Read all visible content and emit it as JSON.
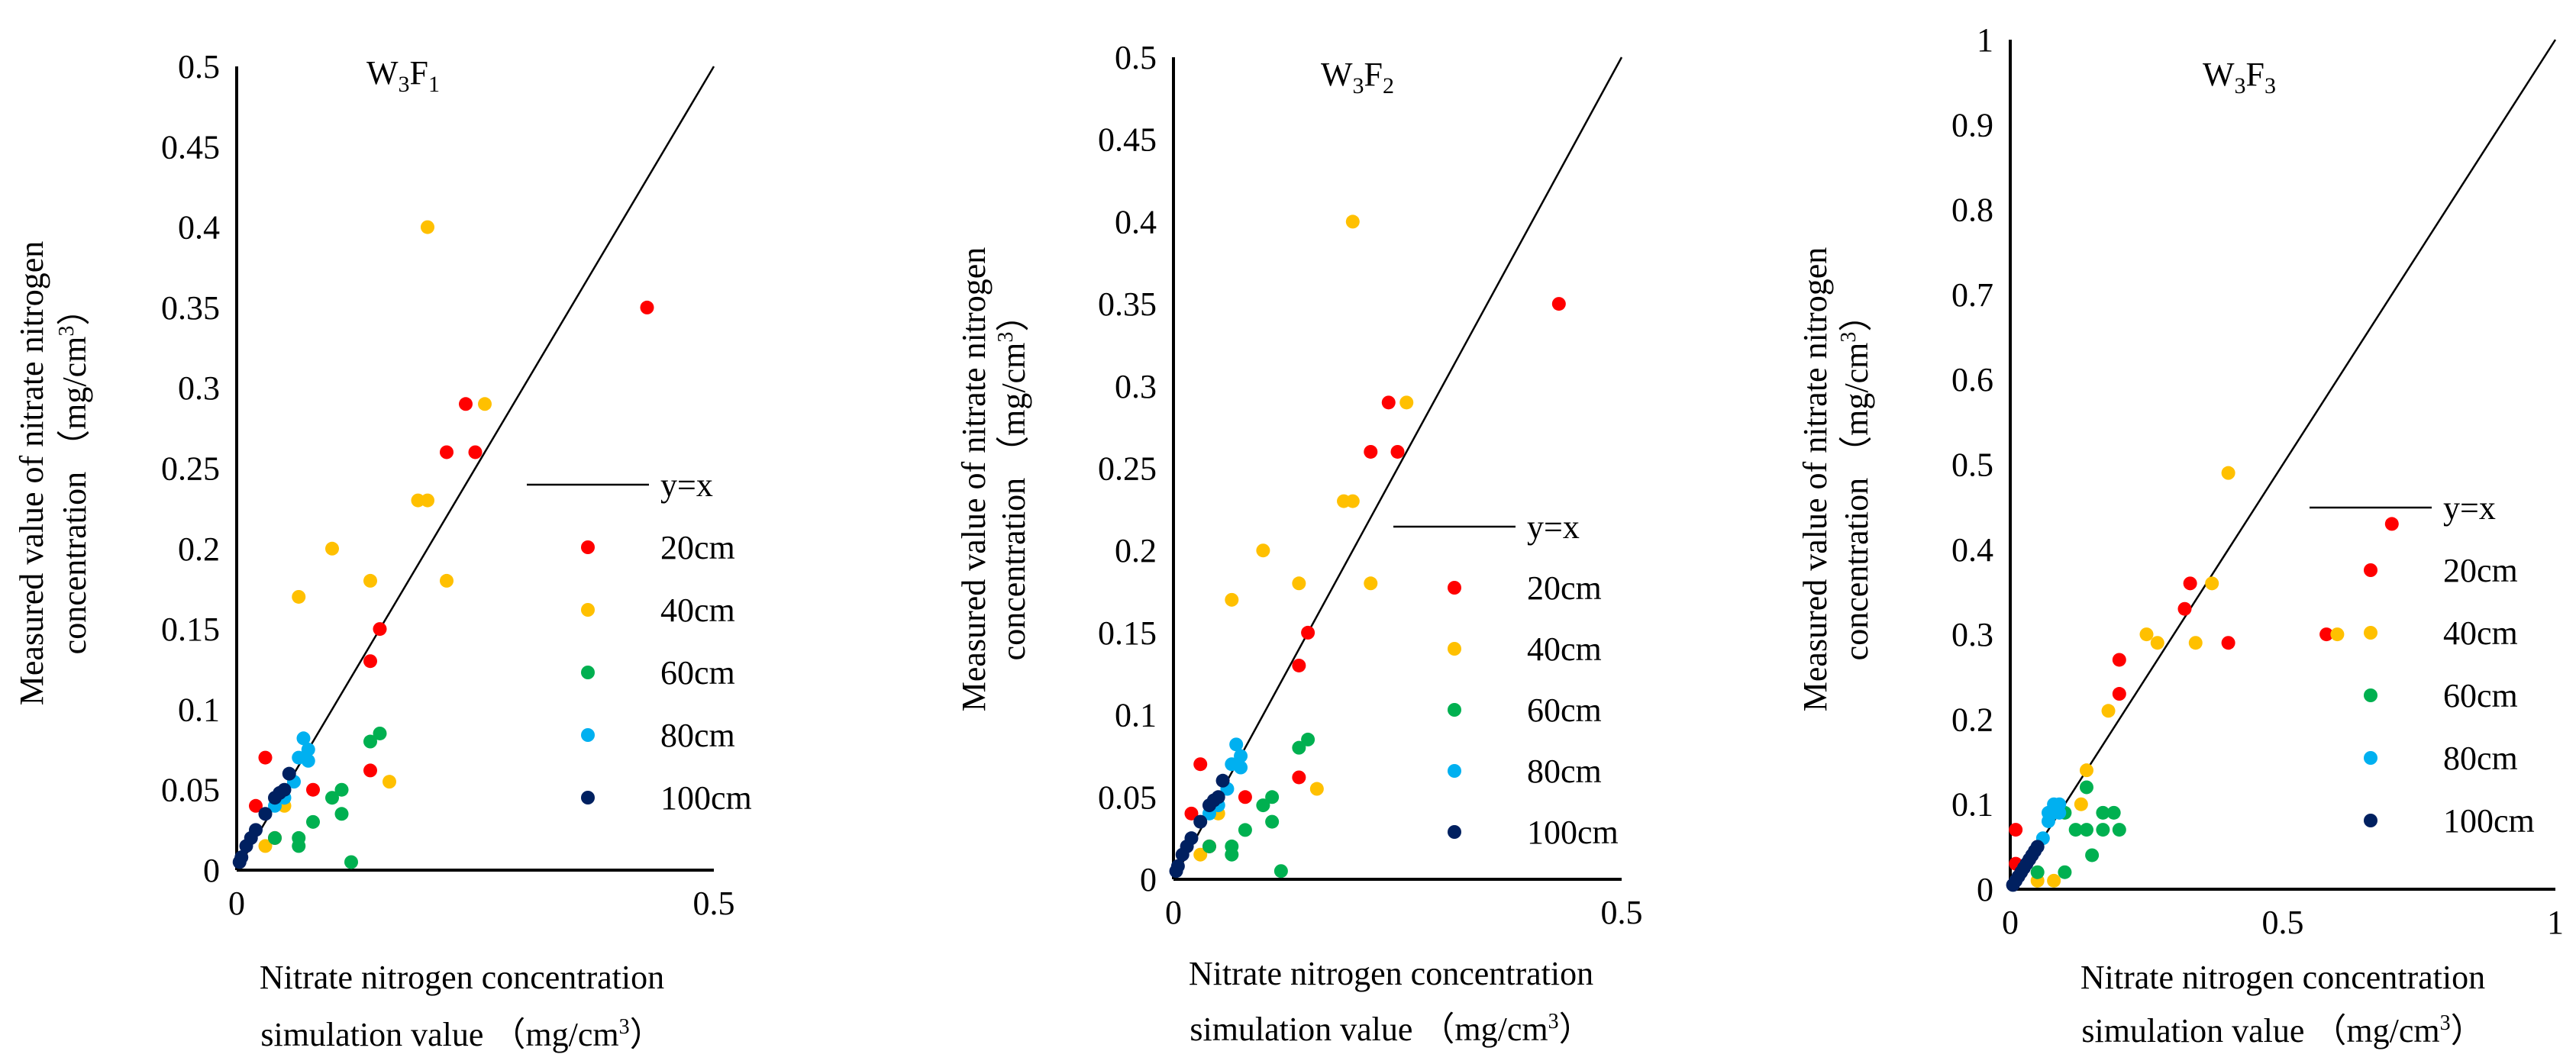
{
  "chart_data": [
    {
      "type": "scatter",
      "title": "W",
      "title_sub1": "3",
      "title_mid": "F",
      "title_sub2": "1",
      "xlabel_line1": "Nitrate nitrogen concentration",
      "xlabel_line2": "simulation value （mg/cm",
      "xlabel_sup": "3",
      "xlabel_end": "）",
      "ylabel_line1": "Measured value of nitrate nitrogen",
      "ylabel_line2": "concentration （mg/cm",
      "ylabel_sup": "3",
      "ylabel_end": "）",
      "xlim": [
        0,
        0.5
      ],
      "ylim": [
        0,
        0.5
      ],
      "x_ticks": [
        "0",
        "0.5"
      ],
      "y_ticks": [
        "0",
        "0.05",
        "0.1",
        "0.15",
        "0.2",
        "0.25",
        "0.3",
        "0.35",
        "0.4",
        "0.45",
        "0.5"
      ],
      "legend_position": "right",
      "legend": [
        "y=x",
        "20cm",
        "40cm",
        "60cm",
        "80cm",
        "100cm"
      ],
      "series": [
        {
          "name": "y=x",
          "kind": "line",
          "color": "#000000"
        },
        {
          "name": "20cm",
          "color": "#ff0000",
          "points": [
            [
              0.43,
              0.35
            ],
            [
              0.24,
              0.29
            ],
            [
              0.22,
              0.26
            ],
            [
              0.25,
              0.26
            ],
            [
              0.15,
              0.15
            ],
            [
              0.14,
              0.13
            ],
            [
              0.14,
              0.062
            ],
            [
              0.08,
              0.05
            ],
            [
              0.03,
              0.07
            ],
            [
              0.02,
              0.04
            ],
            [
              0.04,
              0.02
            ]
          ]
        },
        {
          "name": "40cm",
          "color": "#ffc000",
          "points": [
            [
              0.2,
              0.4
            ],
            [
              0.26,
              0.29
            ],
            [
              0.19,
              0.23
            ],
            [
              0.2,
              0.23
            ],
            [
              0.1,
              0.2
            ],
            [
              0.22,
              0.18
            ],
            [
              0.14,
              0.18
            ],
            [
              0.065,
              0.17
            ],
            [
              0.16,
              0.055
            ],
            [
              0.05,
              0.04
            ],
            [
              0.03,
              0.015
            ]
          ]
        },
        {
          "name": "60cm",
          "color": "#00b050",
          "points": [
            [
              0.15,
              0.085
            ],
            [
              0.14,
              0.08
            ],
            [
              0.11,
              0.05
            ],
            [
              0.1,
              0.045
            ],
            [
              0.11,
              0.035
            ],
            [
              0.08,
              0.03
            ],
            [
              0.065,
              0.02
            ],
            [
              0.065,
              0.015
            ],
            [
              0.12,
              0.005
            ],
            [
              0.04,
              0.02
            ]
          ]
        },
        {
          "name": "80cm",
          "color": "#00b0f0",
          "points": [
            [
              0.07,
              0.082
            ],
            [
              0.075,
              0.075
            ],
            [
              0.075,
              0.068
            ],
            [
              0.065,
              0.07
            ],
            [
              0.06,
              0.055
            ],
            [
              0.05,
              0.045
            ],
            [
              0.04,
              0.04
            ]
          ]
        },
        {
          "name": "100cm",
          "color": "#002060",
          "points": [
            [
              0.055,
              0.06
            ],
            [
              0.05,
              0.05
            ],
            [
              0.045,
              0.048
            ],
            [
              0.04,
              0.045
            ],
            [
              0.03,
              0.035
            ],
            [
              0.02,
              0.025
            ],
            [
              0.015,
              0.02
            ],
            [
              0.01,
              0.015
            ],
            [
              0.005,
              0.008
            ],
            [
              0.003,
              0.005
            ]
          ]
        }
      ]
    },
    {
      "type": "scatter",
      "title": "W",
      "title_sub1": "3",
      "title_mid": "F",
      "title_sub2": "2",
      "xlabel_line1": "Nitrate nitrogen concentration",
      "xlabel_line2": "simulation value （mg/cm",
      "xlabel_sup": "3",
      "xlabel_end": "）",
      "ylabel_line1": "Measured value of nitrate nitrogen",
      "ylabel_line2": "concentration （mg/cm",
      "ylabel_sup": "3",
      "ylabel_end": "）",
      "xlim": [
        0,
        0.5
      ],
      "ylim": [
        0,
        0.5
      ],
      "x_ticks": [
        "0",
        "0.5"
      ],
      "y_ticks": [
        "0",
        "0.05",
        "0.1",
        "0.15",
        "0.2",
        "0.25",
        "0.3",
        "0.35",
        "0.4",
        "0.45",
        "0.5"
      ],
      "legend_position": "right",
      "legend": [
        "y=x",
        "20cm",
        "40cm",
        "60cm",
        "80cm",
        "100cm"
      ],
      "series": [
        {
          "name": "y=x",
          "kind": "line",
          "color": "#000000"
        },
        {
          "name": "20cm",
          "color": "#ff0000",
          "points": [
            [
              0.43,
              0.35
            ],
            [
              0.24,
              0.29
            ],
            [
              0.22,
              0.26
            ],
            [
              0.25,
              0.26
            ],
            [
              0.15,
              0.15
            ],
            [
              0.14,
              0.13
            ],
            [
              0.14,
              0.062
            ],
            [
              0.08,
              0.05
            ],
            [
              0.03,
              0.07
            ],
            [
              0.02,
              0.04
            ],
            [
              0.04,
              0.02
            ]
          ]
        },
        {
          "name": "40cm",
          "color": "#ffc000",
          "points": [
            [
              0.2,
              0.4
            ],
            [
              0.26,
              0.29
            ],
            [
              0.19,
              0.23
            ],
            [
              0.2,
              0.23
            ],
            [
              0.1,
              0.2
            ],
            [
              0.22,
              0.18
            ],
            [
              0.14,
              0.18
            ],
            [
              0.065,
              0.17
            ],
            [
              0.16,
              0.055
            ],
            [
              0.05,
              0.04
            ],
            [
              0.03,
              0.015
            ]
          ]
        },
        {
          "name": "60cm",
          "color": "#00b050",
          "points": [
            [
              0.15,
              0.085
            ],
            [
              0.14,
              0.08
            ],
            [
              0.11,
              0.05
            ],
            [
              0.1,
              0.045
            ],
            [
              0.11,
              0.035
            ],
            [
              0.08,
              0.03
            ],
            [
              0.065,
              0.02
            ],
            [
              0.065,
              0.015
            ],
            [
              0.12,
              0.005
            ],
            [
              0.04,
              0.02
            ]
          ]
        },
        {
          "name": "80cm",
          "color": "#00b0f0",
          "points": [
            [
              0.07,
              0.082
            ],
            [
              0.075,
              0.075
            ],
            [
              0.075,
              0.068
            ],
            [
              0.065,
              0.07
            ],
            [
              0.06,
              0.055
            ],
            [
              0.05,
              0.045
            ],
            [
              0.04,
              0.04
            ]
          ]
        },
        {
          "name": "100cm",
          "color": "#002060",
          "points": [
            [
              0.055,
              0.06
            ],
            [
              0.05,
              0.05
            ],
            [
              0.045,
              0.048
            ],
            [
              0.04,
              0.045
            ],
            [
              0.03,
              0.035
            ],
            [
              0.02,
              0.025
            ],
            [
              0.015,
              0.02
            ],
            [
              0.01,
              0.015
            ],
            [
              0.005,
              0.008
            ],
            [
              0.003,
              0.005
            ]
          ]
        }
      ]
    },
    {
      "type": "scatter",
      "title": "W",
      "title_sub1": "3",
      "title_mid": "F",
      "title_sub2": "3",
      "xlabel_line1": "Nitrate nitrogen concentration",
      "xlabel_line2": "simulation value （mg/cm",
      "xlabel_sup": "3",
      "xlabel_end": "）",
      "ylabel_line1": "Measured value of nitrate nitrogen",
      "ylabel_line2": "concentration （mg/cm",
      "ylabel_sup": "3",
      "ylabel_end": "）",
      "xlim": [
        0,
        1
      ],
      "ylim": [
        0,
        1
      ],
      "x_ticks": [
        "0",
        "0.5",
        "1"
      ],
      "y_ticks": [
        "0",
        "0.1",
        "0.2",
        "0.3",
        "0.4",
        "0.5",
        "0.6",
        "0.7",
        "0.8",
        "0.9",
        "1"
      ],
      "legend_position": "right",
      "legend": [
        "y=x",
        "20cm",
        "40cm",
        "60cm",
        "80cm",
        "100cm"
      ],
      "series": [
        {
          "name": "y=x",
          "kind": "line",
          "color": "#000000"
        },
        {
          "name": "20cm",
          "color": "#ff0000",
          "points": [
            [
              0.7,
              0.43
            ],
            [
              0.33,
              0.36
            ],
            [
              0.32,
              0.33
            ],
            [
              0.58,
              0.3
            ],
            [
              0.4,
              0.29
            ],
            [
              0.2,
              0.27
            ],
            [
              0.2,
              0.23
            ],
            [
              0.01,
              0.07
            ],
            [
              0.01,
              0.03
            ]
          ]
        },
        {
          "name": "40cm",
          "color": "#ffc000",
          "points": [
            [
              0.4,
              0.49
            ],
            [
              0.37,
              0.36
            ],
            [
              0.6,
              0.3
            ],
            [
              0.25,
              0.3
            ],
            [
              0.27,
              0.29
            ],
            [
              0.34,
              0.29
            ],
            [
              0.18,
              0.21
            ],
            [
              0.14,
              0.14
            ],
            [
              0.13,
              0.1
            ],
            [
              0.08,
              0.01
            ],
            [
              0.05,
              0.01
            ]
          ]
        },
        {
          "name": "60cm",
          "color": "#00b050",
          "points": [
            [
              0.14,
              0.12
            ],
            [
              0.19,
              0.09
            ],
            [
              0.17,
              0.09
            ],
            [
              0.1,
              0.09
            ],
            [
              0.14,
              0.07
            ],
            [
              0.17,
              0.07
            ],
            [
              0.2,
              0.07
            ],
            [
              0.12,
              0.07
            ],
            [
              0.15,
              0.04
            ],
            [
              0.1,
              0.02
            ],
            [
              0.05,
              0.02
            ]
          ]
        },
        {
          "name": "80cm",
          "color": "#00b0f0",
          "points": [
            [
              0.08,
              0.1
            ],
            [
              0.09,
              0.1
            ],
            [
              0.07,
              0.09
            ],
            [
              0.08,
              0.09
            ],
            [
              0.09,
              0.09
            ],
            [
              0.07,
              0.08
            ],
            [
              0.06,
              0.06
            ]
          ]
        },
        {
          "name": "100cm",
          "color": "#002060",
          "points": [
            [
              0.05,
              0.05
            ],
            [
              0.045,
              0.045
            ],
            [
              0.04,
              0.04
            ],
            [
              0.035,
              0.035
            ],
            [
              0.03,
              0.03
            ],
            [
              0.025,
              0.025
            ],
            [
              0.02,
              0.02
            ],
            [
              0.015,
              0.015
            ],
            [
              0.01,
              0.01
            ],
            [
              0.005,
              0.005
            ]
          ]
        }
      ]
    }
  ]
}
